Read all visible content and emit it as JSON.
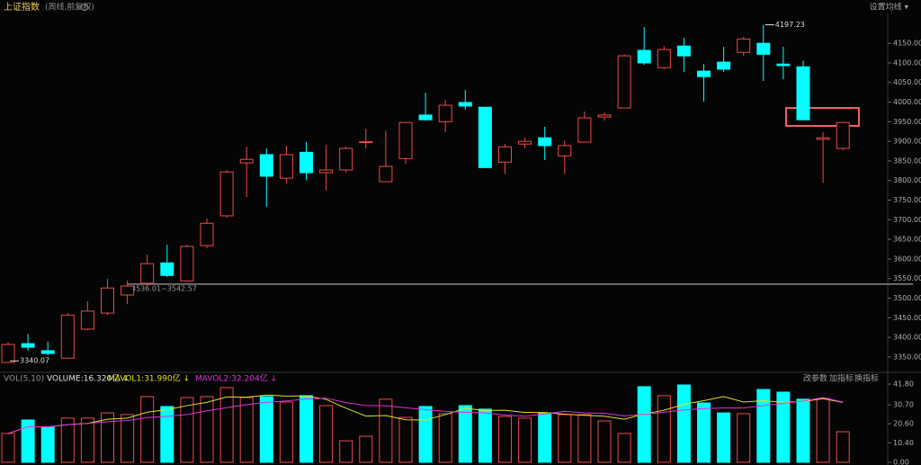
{
  "chart_data": [
    {
      "type": "candlestick",
      "title": "上证指数",
      "subtitle": "(周线,前复权)",
      "settings_button": "设置均线 ▾",
      "up_color": "#f04848",
      "down_color": "#00ffff",
      "open": [
        3336,
        3384,
        3366,
        3347,
        3421,
        3462,
        3508,
        3538,
        3590,
        3544,
        3634,
        3710,
        3845,
        3866,
        3806,
        3872,
        3820,
        3827,
        3897,
        3797,
        3856,
        3967,
        3950,
        3999,
        3987,
        3847,
        3893,
        3909,
        3863,
        3898,
        3962,
        3985,
        4132,
        4088,
        4143,
        4079,
        4102,
        4127,
        4150,
        4097,
        4090,
        3905,
        3882
      ],
      "high": [
        3388,
        3409,
        3389,
        3462,
        3492,
        3549,
        3545,
        3611,
        3636,
        3636,
        3703,
        3827,
        3886,
        3882,
        3889,
        3898,
        3891,
        3886,
        3932,
        3927,
        3948,
        4024,
        4006,
        4031,
        3987,
        3893,
        3909,
        3937,
        3902,
        3976,
        3973,
        4122,
        4191,
        4143,
        4164,
        4097,
        4141,
        4166,
        4197.23,
        4141,
        4106,
        3923,
        3950
      ],
      "low": [
        3340.07,
        3366,
        3354,
        3345,
        3418,
        3457,
        3485,
        3531,
        3554,
        3544,
        3627,
        3705,
        3758,
        3733,
        3792,
        3801,
        3774,
        3820,
        3882,
        3797,
        3843,
        3953,
        3923,
        3980,
        3833,
        3817,
        3882,
        3852,
        3817,
        3898,
        3953,
        3985,
        4095,
        4083,
        4077,
        4001,
        4077,
        4118,
        4054,
        4058,
        3955,
        3794,
        3877
      ],
      "close": [
        3382,
        3375,
        3359,
        3457,
        3467,
        3526,
        3531,
        3588,
        3558,
        3632,
        3691,
        3822,
        3854,
        3811,
        3866,
        3820,
        3827,
        3882,
        3899,
        3836,
        3948,
        3955,
        3992,
        3990,
        3833,
        3886,
        3900,
        3889,
        3889,
        3960,
        3967,
        4118,
        4100,
        4134,
        4118,
        4065,
        4084,
        4161,
        4122,
        4093,
        3955,
        3909,
        3948
      ],
      "range_line": {
        "value": 3536.01,
        "label": "3536.01~3542.57"
      },
      "ylim": [
        3320,
        4226
      ],
      "yticks": [
        {
          "value": 4150,
          "label": "4150.00"
        },
        {
          "value": 4100,
          "label": "4100.00"
        },
        {
          "value": 4050,
          "label": "4050.00"
        },
        {
          "value": 4000,
          "label": "4000.00"
        },
        {
          "value": 3950,
          "label": "3950.00"
        },
        {
          "value": 3900,
          "label": "3900.00"
        },
        {
          "value": 3850,
          "label": "3850.00"
        },
        {
          "value": 3800,
          "label": "3800.00"
        },
        {
          "value": 3750,
          "label": "3750.00"
        },
        {
          "value": 3700,
          "label": "3700.00"
        },
        {
          "value": 3650,
          "label": "3650.00"
        },
        {
          "value": 3600,
          "label": "3600.00"
        },
        {
          "value": 3550,
          "label": "3550.00"
        },
        {
          "value": 3500,
          "label": "3500.00"
        },
        {
          "value": 3450,
          "label": "3450.00"
        },
        {
          "value": 3400,
          "label": "3400.00"
        },
        {
          "value": 3350,
          "label": "3350.00"
        }
      ]
    },
    {
      "type": "volume",
      "title": "VOL(5,10)",
      "volume_label": "VOLUME:16.320亿 ↓",
      "buttons": [
        "改参数",
        "加指标",
        "换指标"
      ],
      "values": [
        15.4,
        22.6,
        18.8,
        23.6,
        23.6,
        26.4,
        25.5,
        35.1,
        29.8,
        34.6,
        35.1,
        39.9,
        34.6,
        35.1,
        32.2,
        35.6,
        30.3,
        11.5,
        13.9,
        33.7,
        24.0,
        29.8,
        26.0,
        30.3,
        28.4,
        24.5,
        23.6,
        26.4,
        25.5,
        25.5,
        22.1,
        15.4,
        40.4,
        35.6,
        41.3,
        31.7,
        26.4,
        26.0,
        38.9,
        37.5,
        33.7,
        34.1,
        16.32
      ],
      "series": [
        {
          "name": "MAVOL1:31.990亿 ↓",
          "color": "#e0e020",
          "values": [
            15.4,
            19.0,
            18.9,
            20.1,
            20.8,
            23.0,
            23.6,
            26.8,
            28.1,
            30.3,
            32.0,
            34.9,
            34.8,
            35.9,
            35.4,
            35.5,
            33.6,
            28.9,
            24.7,
            25.0,
            22.7,
            22.6,
            25.5,
            28.8,
            27.7,
            27.8,
            26.6,
            26.6,
            25.7,
            25.1,
            24.6,
            23.0,
            25.8,
            27.8,
            31.0,
            32.9,
            35.1,
            32.2,
            32.9,
            32.1,
            32.5,
            34.0,
            31.99
          ]
        },
        {
          "name": "MAVOL2:32.204亿 ↓",
          "color": "#e030e0",
          "values": [
            15.4,
            19.0,
            18.9,
            20.1,
            20.8,
            21.7,
            22.3,
            23.9,
            24.5,
            25.5,
            27.5,
            29.2,
            30.8,
            32.0,
            32.8,
            33.8,
            34.2,
            31.9,
            30.3,
            30.2,
            29.1,
            28.1,
            27.2,
            26.7,
            26.4,
            25.2,
            24.6,
            25.9,
            27.2,
            26.4,
            26.2,
            24.8,
            25.6,
            26.7,
            28.0,
            28.7,
            29.0,
            29.0,
            30.3,
            31.5,
            32.7,
            34.6,
            32.204
          ]
        }
      ],
      "ylim": [
        0,
        41.8
      ],
      "yticks": [
        {
          "value": 41.8,
          "label": "41.80"
        },
        {
          "value": 30.7,
          "label": "30.70"
        },
        {
          "value": 20.6,
          "label": "20.60"
        },
        {
          "value": 10.4,
          "label": "10.40"
        },
        {
          "value": 0,
          "label": "0.00"
        }
      ]
    }
  ]
}
